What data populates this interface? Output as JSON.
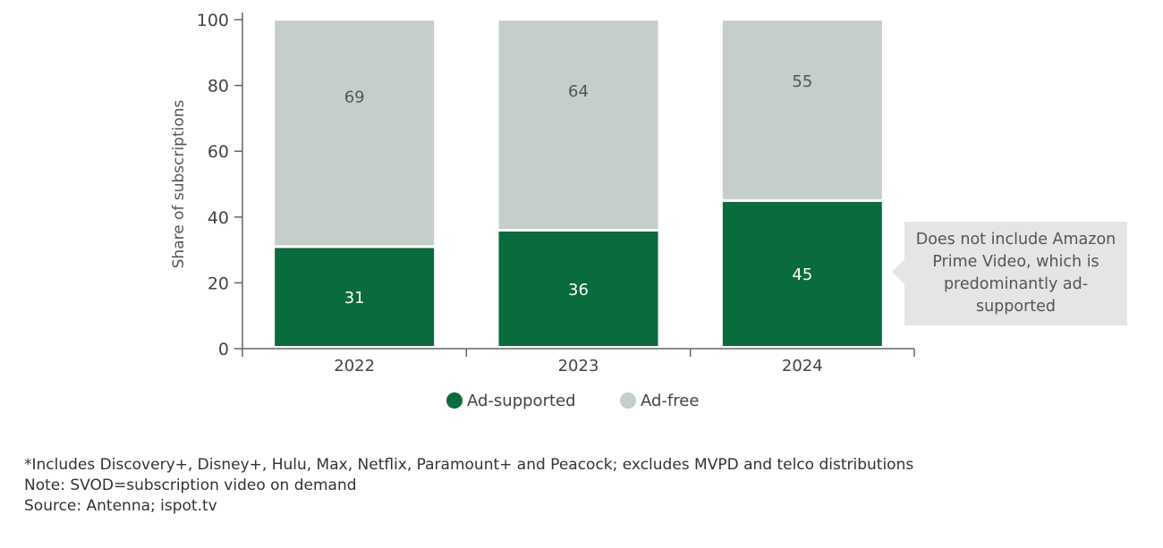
{
  "chart_data": {
    "type": "bar",
    "stacked": true,
    "categories": [
      "2022",
      "2023",
      "2024"
    ],
    "series": [
      {
        "name": "Ad-supported",
        "values": [
          31,
          36,
          45
        ],
        "color": "#0a6b3d"
      },
      {
        "name": "Ad-free",
        "values": [
          69,
          64,
          55
        ],
        "color": "#c5cecb"
      }
    ],
    "ylabel": "Share of subscriptions",
    "ylim": [
      0,
      100
    ],
    "yticks": [
      0,
      20,
      40,
      60,
      80,
      100
    ],
    "grid": false,
    "legend": "bottom",
    "annotation": "Does not include Amazon Prime Video, which is predominantly ad-supported"
  },
  "notes": [
    "*Includes Discovery+, Disney+, Hulu, Max, Netflix, Paramount+ and Peacock; excludes MVPD and telco distributions",
    "Note: SVOD=subscription video on demand",
    "Source: Antenna; ispot.tv"
  ]
}
